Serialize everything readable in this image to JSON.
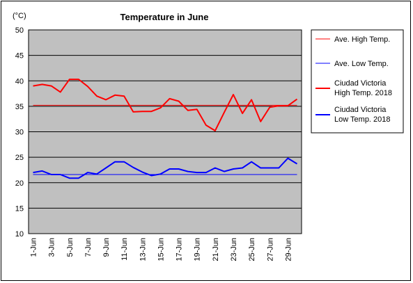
{
  "chart_data": {
    "type": "line",
    "title": "Temperature in June",
    "unit_label": "(°C)",
    "xlabel": "",
    "ylabel": "",
    "ylim": [
      10,
      50
    ],
    "yticks": [
      10,
      15,
      20,
      25,
      30,
      35,
      40,
      45,
      50
    ],
    "categories": [
      "1-Jun",
      "2-Jun",
      "3-Jun",
      "4-Jun",
      "5-Jun",
      "6-Jun",
      "7-Jun",
      "8-Jun",
      "9-Jun",
      "10-Jun",
      "11-Jun",
      "12-Jun",
      "13-Jun",
      "14-Jun",
      "15-Jun",
      "16-Jun",
      "17-Jun",
      "18-Jun",
      "19-Jun",
      "20-Jun",
      "21-Jun",
      "22-Jun",
      "23-Jun",
      "24-Jun",
      "25-Jun",
      "26-Jun",
      "27-Jun",
      "28-Jun",
      "29-Jun",
      "30-Jun"
    ],
    "tick_labels": [
      "1-Jun",
      "3-Jun",
      "5-Jun",
      "7-Jun",
      "9-Jun",
      "11-Jun",
      "13-Jun",
      "15-Jun",
      "17-Jun",
      "19-Jun",
      "21-Jun",
      "23-Jun",
      "25-Jun",
      "27-Jun",
      "29-Jun"
    ],
    "grid": true,
    "legend_position": "right",
    "series": [
      {
        "name": "Ave. High Temp.",
        "color": "#ff0000",
        "width": 1,
        "values": [
          35.2,
          35.2,
          35.2,
          35.2,
          35.2,
          35.2,
          35.2,
          35.2,
          35.2,
          35.2,
          35.2,
          35.2,
          35.2,
          35.2,
          35.2,
          35.2,
          35.2,
          35.2,
          35.2,
          35.2,
          35.2,
          35.2,
          35.2,
          35.2,
          35.2,
          35.2,
          35.2,
          35.2,
          35.2,
          35.2
        ]
      },
      {
        "name": "Ave. Low Temp.",
        "color": "#0000ff",
        "width": 1,
        "values": [
          21.6,
          21.6,
          21.6,
          21.6,
          21.6,
          21.6,
          21.6,
          21.6,
          21.6,
          21.6,
          21.6,
          21.6,
          21.6,
          21.6,
          21.6,
          21.6,
          21.6,
          21.6,
          21.6,
          21.6,
          21.6,
          21.6,
          21.6,
          21.6,
          21.6,
          21.6,
          21.6,
          21.6,
          21.6,
          21.6
        ]
      },
      {
        "name": "Ciudad Victoria High Temp. 2018",
        "legend_lines": [
          "Ciudad Victoria",
          "High Temp. 2018"
        ],
        "color": "#ff0000",
        "width": 2,
        "values": [
          39,
          39.3,
          39,
          37.8,
          40.3,
          40.3,
          38.9,
          37,
          36.3,
          37.2,
          37,
          33.9,
          34,
          34,
          34.7,
          36.5,
          36,
          34.2,
          34.4,
          31.3,
          30.2,
          33.8,
          37.3,
          33.6,
          36.3,
          32,
          34.8,
          35.1,
          35.1,
          36.4
        ]
      },
      {
        "name": "Ciudad Victoria Low Temp. 2018",
        "legend_lines": [
          "Ciudad Victoria",
          "Low Temp. 2018"
        ],
        "color": "#0000ff",
        "width": 2,
        "values": [
          22,
          22.3,
          21.6,
          21.6,
          20.9,
          20.9,
          22,
          21.7,
          22.9,
          24.1,
          24.1,
          23,
          22.1,
          21.4,
          21.7,
          22.7,
          22.7,
          22.2,
          22,
          22,
          22.9,
          22.2,
          22.7,
          22.9,
          24.1,
          22.9,
          22.9,
          22.9,
          24.8,
          23.7
        ]
      }
    ]
  }
}
